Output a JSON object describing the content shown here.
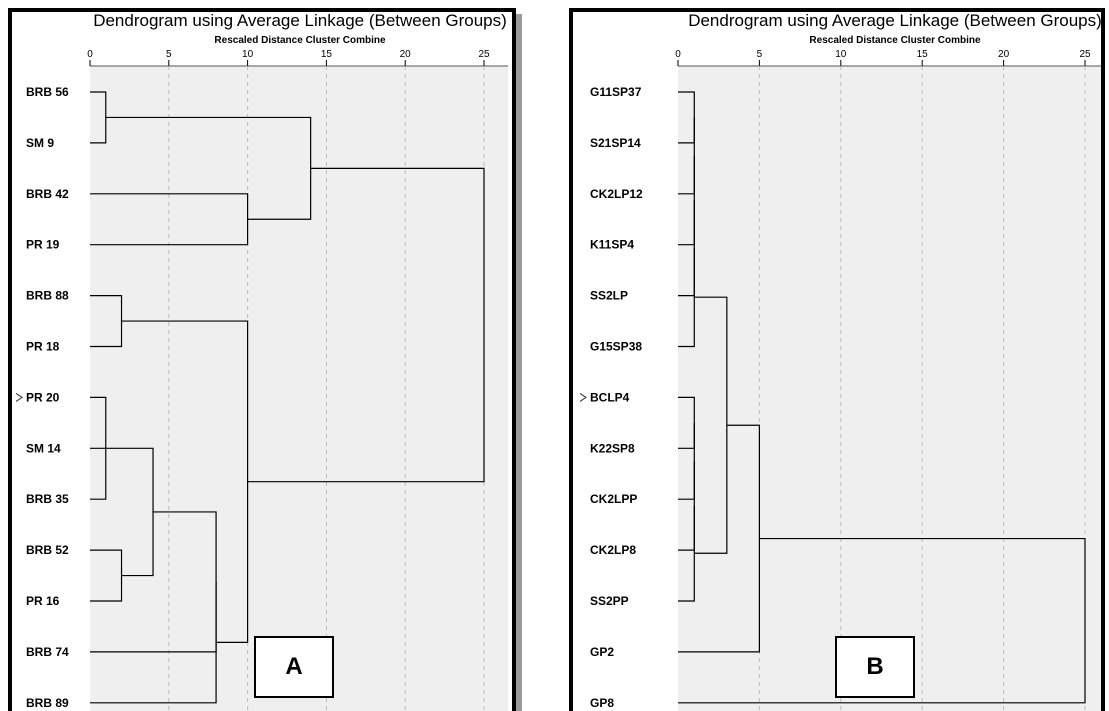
{
  "chart_data": [
    {
      "type": "dendrogram",
      "panel_label": "A",
      "title": "Dendrogram using Average Linkage (Between Groups)",
      "subtitle": "Rescaled Distance Cluster Combine",
      "xlim": [
        0,
        25
      ],
      "xticks": [
        0,
        5,
        10,
        15,
        20,
        25
      ],
      "grid": true,
      "leaves": [
        "BRB 56",
        "SM 9",
        "BRB 42",
        "PR 19",
        "BRB 88",
        "PR 18",
        "PR 20",
        "SM 14",
        "BRB 35",
        "BRB 52",
        "PR 16",
        "BRB 74",
        "BRB 89"
      ],
      "marked_leaf": "PR 20",
      "merges": [
        {
          "a": "leaf:BRB 56",
          "b": "leaf:SM 9",
          "height": 1
        },
        {
          "a": "leaf:PR 20",
          "b": "leaf:BRB 35",
          "height": 1
        },
        {
          "a": "leaf:BRB 88",
          "b": "leaf:PR 18",
          "height": 2
        },
        {
          "a": "leaf:SM 14",
          "b": "merge:1",
          "height": 2
        },
        {
          "a": "leaf:BRB 52",
          "b": "leaf:PR 16",
          "height": 2
        },
        {
          "a": "merge:3",
          "b": "merge:4",
          "height": 4
        },
        {
          "a": "merge:5",
          "b": "leaf:BRB 74",
          "height": 8
        },
        {
          "a": "merge:6",
          "b": "leaf:BRB 89",
          "height": 8
        },
        {
          "a": "leaf:BRB 42",
          "b": "leaf:PR 19",
          "height": 10
        },
        {
          "a": "merge:2",
          "b": "merge:7",
          "height": 10
        },
        {
          "a": "merge:0",
          "b": "merge:8",
          "height": 14
        },
        {
          "a": "merge:10",
          "b": "merge:9",
          "height": 25
        }
      ]
    },
    {
      "type": "dendrogram",
      "panel_label": "B",
      "title": "Dendrogram using Average Linkage (Between Groups)",
      "subtitle": "Rescaled Distance Cluster Combine",
      "xlim": [
        0,
        25
      ],
      "xticks": [
        0,
        5,
        10,
        15,
        20,
        25
      ],
      "grid": true,
      "leaves": [
        "G11SP37",
        "S21SP14",
        "CK2LP12",
        "K11SP4",
        "SS2LP",
        "G15SP38",
        "BCLP4",
        "K22SP8",
        "CK2LPP",
        "CK2LP8",
        "SS2PP",
        "GP2",
        "GP8"
      ],
      "marked_leaf": "BCLP4",
      "merges": [
        {
          "a": "leaf:G11SP37",
          "b": "leaf:S21SP14",
          "height": 1
        },
        {
          "a": "merge:0",
          "b": "leaf:CK2LP12",
          "height": 1
        },
        {
          "a": "merge:1",
          "b": "leaf:K11SP4",
          "height": 1
        },
        {
          "a": "merge:2",
          "b": "leaf:SS2LP",
          "height": 1
        },
        {
          "a": "merge:3",
          "b": "leaf:G15SP38",
          "height": 1
        },
        {
          "a": "leaf:BCLP4",
          "b": "leaf:K22SP8",
          "height": 1
        },
        {
          "a": "merge:5",
          "b": "leaf:CK2LPP",
          "height": 1
        },
        {
          "a": "merge:6",
          "b": "leaf:CK2LP8",
          "height": 1
        },
        {
          "a": "merge:7",
          "b": "leaf:SS2PP",
          "height": 1
        },
        {
          "a": "merge:4",
          "b": "merge:8",
          "height": 3
        },
        {
          "a": "merge:9",
          "b": "leaf:GP2",
          "height": 5
        },
        {
          "a": "merge:10",
          "b": "leaf:GP8",
          "height": 25
        }
      ]
    }
  ]
}
